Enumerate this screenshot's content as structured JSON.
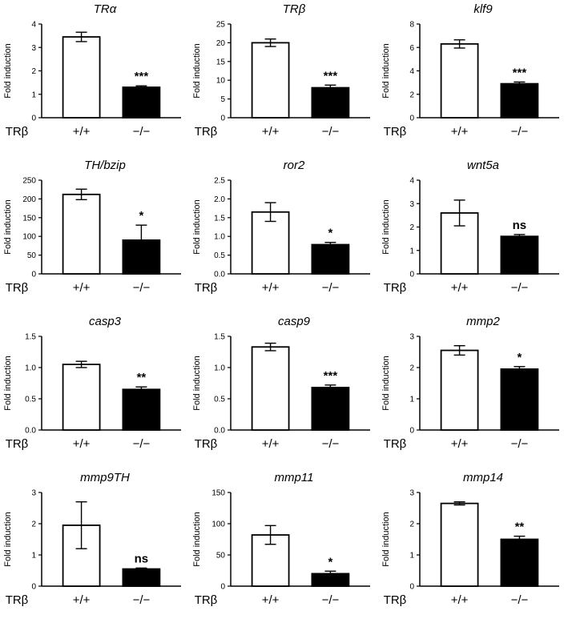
{
  "figure": {
    "ylabel": "Fold induction",
    "xaxis_gene_label": "TRβ",
    "layout": {
      "columns": 3,
      "rows": 4,
      "grid": false,
      "legend": "none"
    },
    "colors": {
      "wildtype_bar": "#ffffff",
      "knockout_bar": "#000000",
      "axis": "#000000",
      "background": "#ffffff"
    }
  },
  "chart_data": [
    {
      "type": "bar",
      "title": "TRα",
      "ylabel": "Fold induction",
      "categories": [
        "+/+",
        "−/−"
      ],
      "values": [
        3.45,
        1.3
      ],
      "errors": [
        0.2,
        0.06
      ],
      "significance": "***",
      "ylim": [
        0,
        4
      ],
      "yticks": [
        "0",
        "1",
        "2",
        "3",
        "4"
      ]
    },
    {
      "type": "bar",
      "title": "TRβ",
      "ylabel": "Fold induction",
      "categories": [
        "+/+",
        "−/−"
      ],
      "values": [
        20,
        8
      ],
      "errors": [
        1,
        0.7
      ],
      "significance": "***",
      "ylim": [
        0,
        25
      ],
      "yticks": [
        "0",
        "5",
        "10",
        "15",
        "20",
        "25"
      ]
    },
    {
      "type": "bar",
      "title": "klf9",
      "ylabel": "Fold induction",
      "categories": [
        "+/+",
        "−/−"
      ],
      "values": [
        6.3,
        2.9
      ],
      "errors": [
        0.35,
        0.15
      ],
      "significance": "***",
      "ylim": [
        0,
        8
      ],
      "yticks": [
        "0",
        "2",
        "4",
        "6",
        "8"
      ]
    },
    {
      "type": "bar",
      "title": "TH/bzip",
      "ylabel": "Fold induction",
      "categories": [
        "+/+",
        "−/−"
      ],
      "values": [
        212,
        90
      ],
      "errors": [
        14,
        40
      ],
      "significance": "*",
      "ylim": [
        0,
        250
      ],
      "yticks": [
        "0",
        "50",
        "100",
        "150",
        "200",
        "250"
      ]
    },
    {
      "type": "bar",
      "title": "ror2",
      "ylabel": "Fold induction",
      "categories": [
        "+/+",
        "−/−"
      ],
      "values": [
        1.65,
        0.78
      ],
      "errors": [
        0.25,
        0.06
      ],
      "significance": "*",
      "ylim": [
        0,
        2.5
      ],
      "yticks": [
        "0.0",
        "0.5",
        "1.0",
        "1.5",
        "2.0",
        "2.5"
      ]
    },
    {
      "type": "bar",
      "title": "wnt5a",
      "ylabel": "Fold induction",
      "categories": [
        "+/+",
        "−/−"
      ],
      "values": [
        2.6,
        1.6
      ],
      "errors": [
        0.55,
        0.08
      ],
      "significance": "ns",
      "ylim": [
        0,
        4
      ],
      "yticks": [
        "0",
        "1",
        "2",
        "3",
        "4"
      ]
    },
    {
      "type": "bar",
      "title": "casp3",
      "ylabel": "Fold induction",
      "categories": [
        "+/+",
        "−/−"
      ],
      "values": [
        1.05,
        0.65
      ],
      "errors": [
        0.05,
        0.04
      ],
      "significance": "**",
      "ylim": [
        0,
        1.5
      ],
      "yticks": [
        "0.0",
        "0.5",
        "1.0",
        "1.5"
      ]
    },
    {
      "type": "bar",
      "title": "casp9",
      "ylabel": "Fold induction",
      "categories": [
        "+/+",
        "−/−"
      ],
      "values": [
        1.33,
        0.68
      ],
      "errors": [
        0.06,
        0.04
      ],
      "significance": "***",
      "ylim": [
        0,
        1.5
      ],
      "yticks": [
        "0.0",
        "0.5",
        "1.0",
        "1.5"
      ]
    },
    {
      "type": "bar",
      "title": "mmp2",
      "ylabel": "Fold induction",
      "categories": [
        "+/+",
        "−/−"
      ],
      "values": [
        2.55,
        1.95
      ],
      "errors": [
        0.15,
        0.08
      ],
      "significance": "*",
      "ylim": [
        0,
        3
      ],
      "yticks": [
        "0",
        "1",
        "2",
        "3"
      ]
    },
    {
      "type": "bar",
      "title": "mmp9TH",
      "ylabel": "Fold induction",
      "categories": [
        "+/+",
        "−/−"
      ],
      "values": [
        1.95,
        0.55
      ],
      "errors": [
        0.75,
        0.03
      ],
      "significance": "ns",
      "ylim": [
        0,
        3
      ],
      "yticks": [
        "0",
        "1",
        "2",
        "3"
      ]
    },
    {
      "type": "bar",
      "title": "mmp11",
      "ylabel": "Fold induction",
      "categories": [
        "+/+",
        "−/−"
      ],
      "values": [
        82,
        20
      ],
      "errors": [
        15,
        4
      ],
      "significance": "*",
      "ylim": [
        0,
        150
      ],
      "yticks": [
        "0",
        "50",
        "100",
        "150"
      ]
    },
    {
      "type": "bar",
      "title": "mmp14",
      "ylabel": "Fold induction",
      "categories": [
        "+/+",
        "−/−"
      ],
      "values": [
        2.65,
        1.5
      ],
      "errors": [
        0.05,
        0.1
      ],
      "significance": "**",
      "ylim": [
        0,
        3
      ],
      "yticks": [
        "0",
        "1",
        "2",
        "3"
      ]
    }
  ]
}
